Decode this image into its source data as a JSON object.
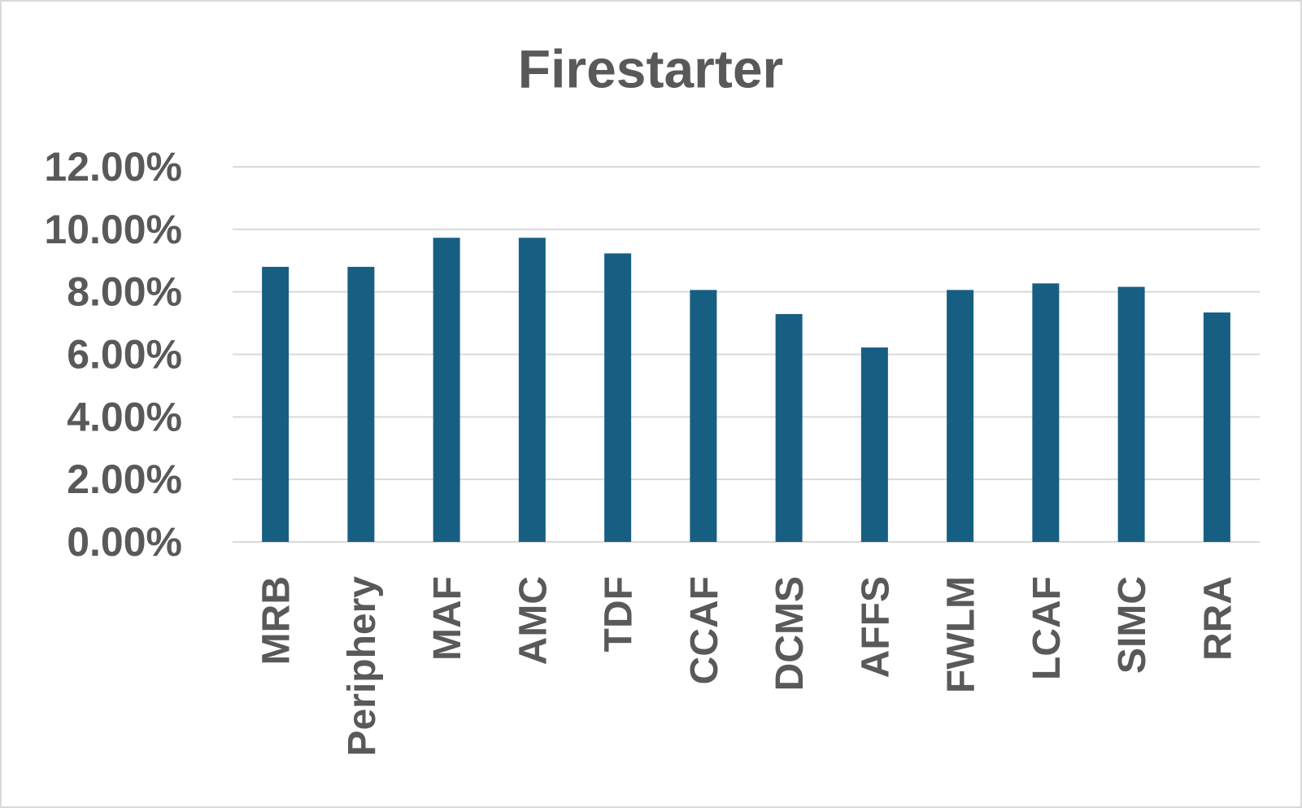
{
  "chart_data": {
    "type": "bar",
    "title": "Firestarter",
    "categories": [
      "MRB",
      "Periphery",
      "MAF",
      "AMC",
      "TDF",
      "CCAF",
      "DCMS",
      "AFFS",
      "FWLM",
      "LCAF",
      "SIMC",
      "RRA"
    ],
    "values": [
      8.8,
      8.8,
      9.73,
      9.73,
      9.23,
      8.06,
      7.29,
      6.22,
      8.06,
      8.27,
      8.16,
      7.34
    ],
    "color": "#175f82",
    "ylim": [
      0,
      12
    ],
    "yticks": [
      {
        "value": 0,
        "label": "0.00%"
      },
      {
        "value": 2,
        "label": "2.00%"
      },
      {
        "value": 4,
        "label": "4.00%"
      },
      {
        "value": 6,
        "label": "6.00%"
      },
      {
        "value": 8,
        "label": "8.00%"
      },
      {
        "value": 10,
        "label": "10.00%"
      },
      {
        "value": 12,
        "label": "12.00%"
      }
    ],
    "grid": true
  }
}
